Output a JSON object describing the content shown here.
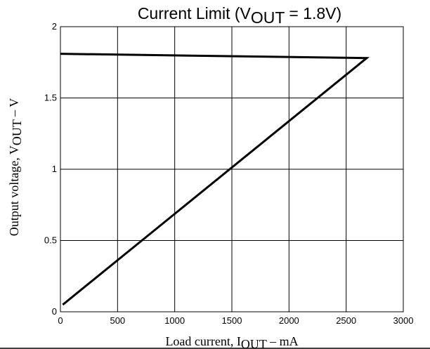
{
  "chart_data": {
    "type": "line",
    "title_lead": "Current Limit (V",
    "title_sub": "OUT",
    "title_tail": " = 1.8V)",
    "xlabel_lead": "Load current, I",
    "xlabel_sub": "OUT",
    "xlabel_tail": " – mA",
    "ylabel_lead": "Output voltage, V",
    "ylabel_sub": "OUT",
    "ylabel_tail": " – V",
    "xlim": [
      0,
      3000
    ],
    "ylim": [
      0,
      2
    ],
    "xticks": [
      "0",
      "500",
      "1000",
      "1500",
      "2000",
      "2500",
      "3000"
    ],
    "yticks": [
      "0",
      "0.5",
      "1",
      "1.5",
      "2"
    ],
    "grid": true,
    "series": [
      {
        "x": [
          0,
          2680,
          2680,
          20
        ],
        "y": [
          1.81,
          1.78,
          1.78,
          0.05
        ],
        "color": "#000000"
      }
    ]
  }
}
